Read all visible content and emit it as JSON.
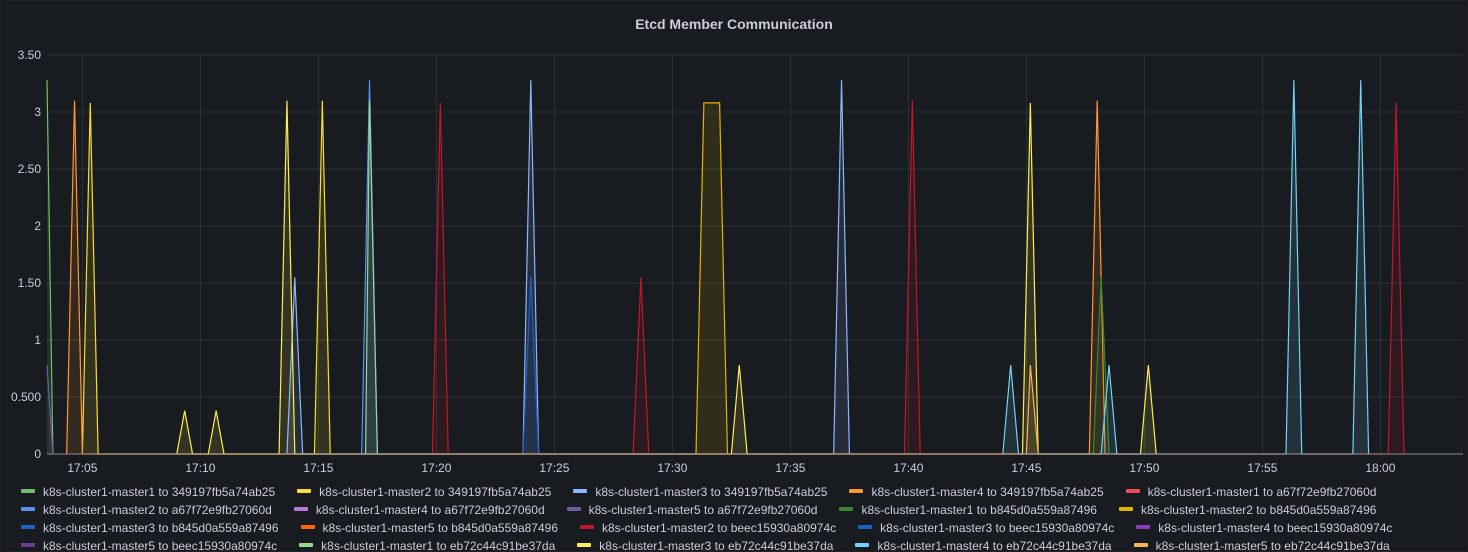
{
  "panel": {
    "title": "Etcd Member Communication"
  },
  "chart_data": {
    "type": "line",
    "title": "Etcd Member Communication",
    "xlabel": "",
    "ylabel": "",
    "x_time_range": [
      "17:03:30",
      "18:03:30"
    ],
    "x_ticks": [
      "17:05",
      "17:10",
      "17:15",
      "17:20",
      "17:25",
      "17:30",
      "17:35",
      "17:40",
      "17:45",
      "17:50",
      "17:55",
      "18:00"
    ],
    "y_ticks": [
      "0",
      "0.500",
      "1",
      "1.50",
      "2",
      "2.50",
      "3",
      "3.50"
    ],
    "ylim": [
      0,
      3.5
    ],
    "grid": true,
    "fill": true,
    "legend_position": "bottom",
    "series": [
      {
        "name": "k8s-cluster1-master1 to 349197fb5a74ab25",
        "color": "#73bf69",
        "points": [
          [
            "17:03:30",
            3.28
          ],
          [
            "17:03:45",
            0
          ]
        ]
      },
      {
        "name": "k8s-cluster1-master2 to 349197fb5a74ab25",
        "color": "#fade2a",
        "points": [
          [
            "17:05:00",
            0
          ],
          [
            "17:05:20",
            3.08
          ],
          [
            "17:05:40",
            0
          ],
          [
            "17:14:50",
            0
          ],
          [
            "17:15:10",
            3.1
          ],
          [
            "17:15:30",
            0
          ]
        ]
      },
      {
        "name": "k8s-cluster1-master3 to 349197fb5a74ab25",
        "color": "#8ab8ff",
        "points": [
          [
            "17:13:40",
            0
          ],
          [
            "17:14:00",
            1.55
          ],
          [
            "17:14:20",
            0
          ],
          [
            "17:23:40",
            0
          ],
          [
            "17:24:00",
            3.28
          ],
          [
            "17:24:20",
            0
          ],
          [
            "17:36:50",
            0
          ],
          [
            "17:37:10",
            3.28
          ],
          [
            "17:37:30",
            0
          ]
        ]
      },
      {
        "name": "k8s-cluster1-master4 to 349197fb5a74ab25",
        "color": "#ff9830",
        "points": [
          [
            "17:04:20",
            0
          ],
          [
            "17:04:40",
            3.1
          ],
          [
            "17:05:00",
            0
          ],
          [
            "17:47:40",
            0
          ],
          [
            "17:48:00",
            3.1
          ],
          [
            "17:48:20",
            0
          ]
        ]
      },
      {
        "name": "k8s-cluster1-master1 to a67f72e9fb27060d",
        "color": "#f2495c",
        "points": [
          [
            "17:49:00",
            0
          ],
          [
            "17:49:00",
            0
          ]
        ]
      },
      {
        "name": "k8s-cluster1-master2 to a67f72e9fb27060d",
        "color": "#5794f2",
        "points": [
          [
            "17:16:50",
            0
          ],
          [
            "17:17:10",
            3.28
          ],
          [
            "17:17:30",
            0
          ]
        ]
      },
      {
        "name": "k8s-cluster1-master4 to a67f72e9fb27060d",
        "color": "#b877d9",
        "points": [
          [
            "17:40:00",
            0
          ],
          [
            "17:40:00",
            0
          ]
        ]
      },
      {
        "name": "k8s-cluster1-master5 to a67f72e9fb27060d",
        "color": "#705da0",
        "points": [
          [
            "17:03:30",
            0.78
          ],
          [
            "17:03:45",
            0
          ]
        ]
      },
      {
        "name": "k8s-cluster1-master1 to b845d0a559a87496",
        "color": "#37872d",
        "points": [
          [
            "17:47:50",
            0
          ],
          [
            "17:48:10",
            1.55
          ],
          [
            "17:48:30",
            0
          ]
        ]
      },
      {
        "name": "k8s-cluster1-master2 to b845d0a559a87496",
        "color": "#e0b400",
        "points": [
          [
            "17:31:00",
            0
          ],
          [
            "17:31:20",
            3.08
          ],
          [
            "17:32:00",
            3.08
          ],
          [
            "17:32:20",
            0
          ]
        ]
      },
      {
        "name": "k8s-cluster1-master3 to b845d0a559a87496",
        "color": "#1f60c4",
        "points": [
          [
            "17:23:40",
            0
          ],
          [
            "17:24:00",
            1.55
          ],
          [
            "17:24:20",
            0
          ]
        ]
      },
      {
        "name": "k8s-cluster1-master5 to b845d0a559a87496",
        "color": "#fa6400",
        "points": [
          [
            "17:15:00",
            0
          ],
          [
            "17:15:00",
            0
          ]
        ]
      },
      {
        "name": "k8s-cluster1-master2 to beec15930a80974c",
        "color": "#c4162a",
        "points": [
          [
            "17:19:50",
            0
          ],
          [
            "17:20:10",
            3.08
          ],
          [
            "17:20:30",
            0
          ],
          [
            "17:28:20",
            0
          ],
          [
            "17:28:40",
            1.55
          ],
          [
            "17:29:00",
            0
          ],
          [
            "17:39:50",
            0
          ],
          [
            "17:40:10",
            3.1
          ],
          [
            "17:40:30",
            0
          ],
          [
            "18:00:20",
            0
          ],
          [
            "18:00:40",
            3.08
          ],
          [
            "18:01:00",
            0
          ]
        ]
      },
      {
        "name": "k8s-cluster1-master3 to beec15930a80974c",
        "color": "#1f60c4",
        "points": [
          [
            "17:58:00",
            0
          ],
          [
            "17:58:00",
            0
          ]
        ]
      },
      {
        "name": "k8s-cluster1-master4 to beec15930a80974c",
        "color": "#8f3bb8",
        "points": [
          [
            "17:30:00",
            0
          ],
          [
            "17:30:00",
            0
          ]
        ]
      },
      {
        "name": "k8s-cluster1-master5 to beec15930a80974c",
        "color": "#6e3d8f",
        "points": [
          [
            "17:20:00",
            0
          ],
          [
            "17:20:00",
            0
          ]
        ]
      },
      {
        "name": "k8s-cluster1-master1 to eb72c44c91be37da",
        "color": "#96d98d",
        "points": [
          [
            "17:17:00",
            0
          ],
          [
            "17:17:10",
            3.1
          ],
          [
            "17:17:30",
            0
          ]
        ]
      },
      {
        "name": "k8s-cluster1-master3 to eb72c44c91be37da",
        "color": "#ffee52",
        "points": [
          [
            "17:09:00",
            0
          ],
          [
            "17:09:20",
            0.38
          ],
          [
            "17:09:40",
            0
          ],
          [
            "17:10:20",
            0
          ],
          [
            "17:10:40",
            0.38
          ],
          [
            "17:11:00",
            0
          ],
          [
            "17:13:20",
            0
          ],
          [
            "17:13:40",
            3.1
          ],
          [
            "17:14:00",
            0
          ],
          [
            "17:32:30",
            0
          ],
          [
            "17:32:50",
            0.78
          ],
          [
            "17:33:10",
            0
          ],
          [
            "17:44:50",
            0
          ],
          [
            "17:45:10",
            3.08
          ],
          [
            "17:45:30",
            0
          ],
          [
            "17:49:50",
            0
          ],
          [
            "17:50:10",
            0.78
          ],
          [
            "17:50:30",
            0
          ]
        ]
      },
      {
        "name": "k8s-cluster1-master4 to eb72c44c91be37da",
        "color": "#73d2f5",
        "points": [
          [
            "17:44:00",
            0
          ],
          [
            "17:44:20",
            0.78
          ],
          [
            "17:44:40",
            0
          ],
          [
            "17:48:10",
            0
          ],
          [
            "17:48:30",
            0.78
          ],
          [
            "17:48:50",
            0
          ],
          [
            "17:56:00",
            0
          ],
          [
            "17:56:20",
            3.28
          ],
          [
            "17:56:40",
            0
          ],
          [
            "17:58:50",
            0
          ],
          [
            "17:59:10",
            3.28
          ],
          [
            "17:59:30",
            0
          ]
        ]
      },
      {
        "name": "k8s-cluster1-master5 to eb72c44c91be37da",
        "color": "#ffb357",
        "points": [
          [
            "17:45:00",
            0
          ],
          [
            "17:45:10",
            0.78
          ],
          [
            "17:45:30",
            0
          ]
        ]
      }
    ]
  }
}
